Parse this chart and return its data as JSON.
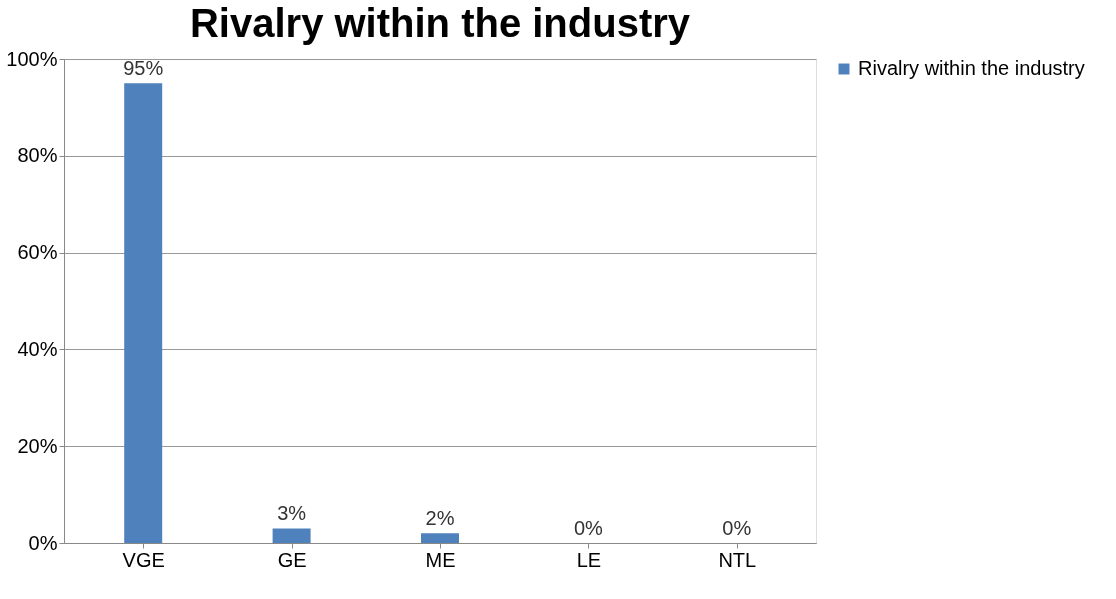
{
  "chart_data": {
    "type": "bar",
    "title": "Rivalry within the industry",
    "categories": [
      "VGE",
      "GE",
      "ME",
      "LE",
      "NTL"
    ],
    "series": [
      {
        "name": "Rivalry within the industry",
        "color": "#4f81bd",
        "values": [
          95,
          3,
          2,
          0,
          0
        ]
      }
    ],
    "value_labels": [
      "95%",
      "3%",
      "2%",
      "0%",
      "0%"
    ],
    "ylim": [
      0,
      100
    ],
    "yticks": [
      {
        "value": 0,
        "label": "0%"
      },
      {
        "value": 20,
        "label": "20%"
      },
      {
        "value": 40,
        "label": "40%"
      },
      {
        "value": 60,
        "label": "60%"
      },
      {
        "value": 80,
        "label": "80%"
      },
      {
        "value": 100,
        "label": "100%"
      }
    ],
    "grid": "y",
    "legend": "right"
  }
}
